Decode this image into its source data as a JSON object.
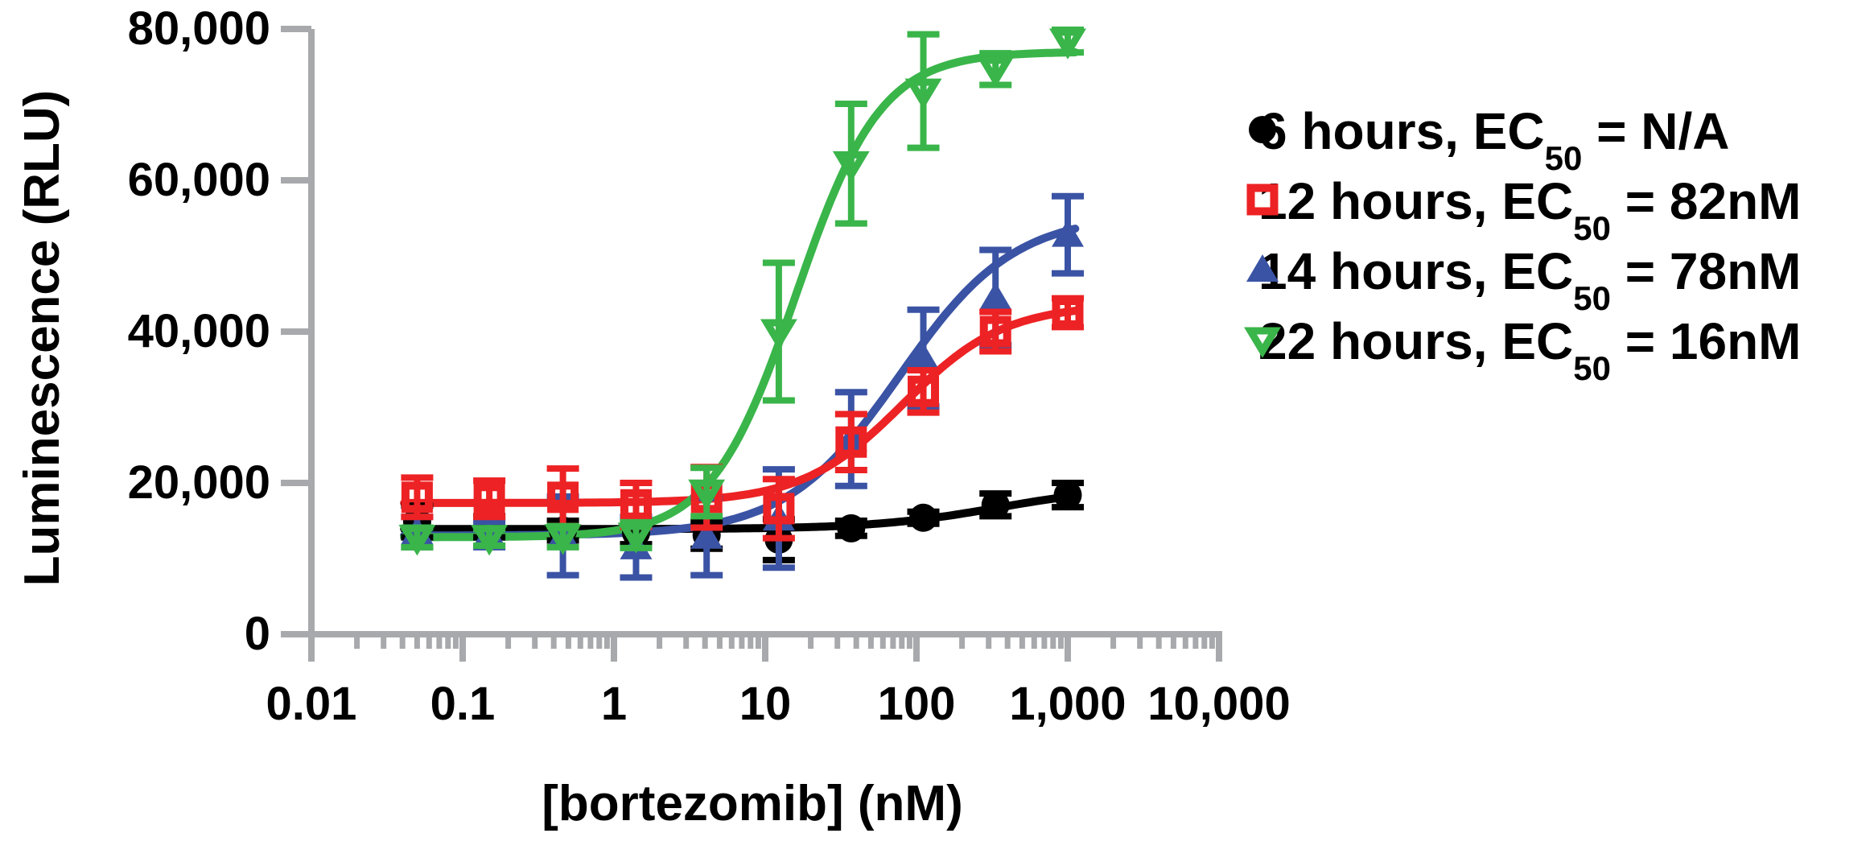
{
  "figure": {
    "background": "#ffffff",
    "axis_color": "#a7a9ac",
    "text_color": "#000000"
  },
  "chart_data": {
    "type": "scatter",
    "subtype": "dose-response-curves-with-error-bars",
    "title": "",
    "xlabel": "[bortezomib] (nM)",
    "ylabel": "Luminescence (RLU)",
    "x_scale": "log",
    "xlim": [
      0.01,
      10000
    ],
    "ylim": [
      0,
      80000
    ],
    "grid": false,
    "legend_position": "right",
    "x_ticks": [
      {
        "value": 0.01,
        "label": "0.01"
      },
      {
        "value": 0.1,
        "label": "0.1"
      },
      {
        "value": 1,
        "label": "1"
      },
      {
        "value": 10,
        "label": "10"
      },
      {
        "value": 100,
        "label": "100"
      },
      {
        "value": 1000,
        "label": "1,000"
      },
      {
        "value": 10000,
        "label": "10,000"
      }
    ],
    "y_ticks": [
      {
        "value": 0,
        "label": "0"
      },
      {
        "value": 20000,
        "label": "20,000"
      },
      {
        "value": 40000,
        "label": "40,000"
      },
      {
        "value": 60000,
        "label": "60,000"
      },
      {
        "value": 80000,
        "label": "80,000"
      }
    ],
    "concentrations_nM": [
      0.05,
      0.15,
      0.46,
      1.4,
      4.1,
      12.3,
      37,
      111,
      333,
      1000
    ],
    "series": [
      {
        "name": "6 hours",
        "ec50": "N/A",
        "marker": "circle-filled",
        "color": "#000000",
        "values": [
          14900,
          14200,
          13700,
          13400,
          13100,
          12500,
          14000,
          15400,
          17100,
          18400
        ],
        "errors": [
          2100,
          1400,
          1300,
          1500,
          1800,
          2700,
          1000,
          800,
          1500,
          1600
        ],
        "fit": {
          "bottom": 13900,
          "top": 19600,
          "ec50": 350,
          "hill": 1.05
        },
        "legend": {
          "prefix": "6 hours, EC",
          "sub": "50",
          "suffix": " = N/A",
          "full": "6 hours, EC50 = N/A"
        }
      },
      {
        "name": "12 hours",
        "ec50": "82nM",
        "marker": "square-open",
        "color": "#ed2224",
        "values": [
          18100,
          17900,
          18100,
          17100,
          18100,
          16600,
          25400,
          32100,
          40000,
          42500
        ],
        "errors": [
          2600,
          2400,
          3800,
          2900,
          4000,
          3900,
          3700,
          2800,
          2600,
          1900
        ],
        "fit": {
          "bottom": 17350,
          "top": 43600,
          "ec50": 82,
          "hill": 1.3
        },
        "legend": {
          "prefix": "12 hours, EC",
          "sub": "50",
          "suffix": " = 82nM",
          "full": "12 hours, EC50 = 82nM"
        }
      },
      {
        "name": "14 hours",
        "ec50": "78nM",
        "marker": "triangle-up-filled",
        "color": "#3a53a4",
        "values": [
          13500,
          13200,
          13000,
          11500,
          12900,
          15300,
          25800,
          36500,
          44500,
          52800
        ],
        "errors": [
          2000,
          1700,
          5200,
          4000,
          5100,
          6500,
          6200,
          6400,
          6300,
          5100
        ],
        "fit": {
          "bottom": 13050,
          "top": 55500,
          "ec50": 78,
          "hill": 1.15
        },
        "legend": {
          "prefix": "14 hours, EC",
          "sub": "50",
          "suffix": " = 78nM",
          "full": "14 hours, EC50 = 78nM"
        }
      },
      {
        "name": "22 hours",
        "ec50": "16nM",
        "marker": "triangle-down-open",
        "color": "#3ab54a",
        "values": [
          12800,
          12800,
          12900,
          13100,
          18800,
          40000,
          62200,
          71800,
          74700,
          78400
        ],
        "errors": [
          1300,
          1100,
          1400,
          1700,
          3200,
          9100,
          7900,
          7500,
          2100,
          1500
        ],
        "fit": {
          "bottom": 12820,
          "top": 77000,
          "ec50": 16,
          "hill": 1.55
        },
        "legend": {
          "prefix": "22 hours, EC",
          "sub": "50",
          "suffix": " = 16nM",
          "full": "22 hours, EC50 = 16nM"
        }
      }
    ]
  }
}
